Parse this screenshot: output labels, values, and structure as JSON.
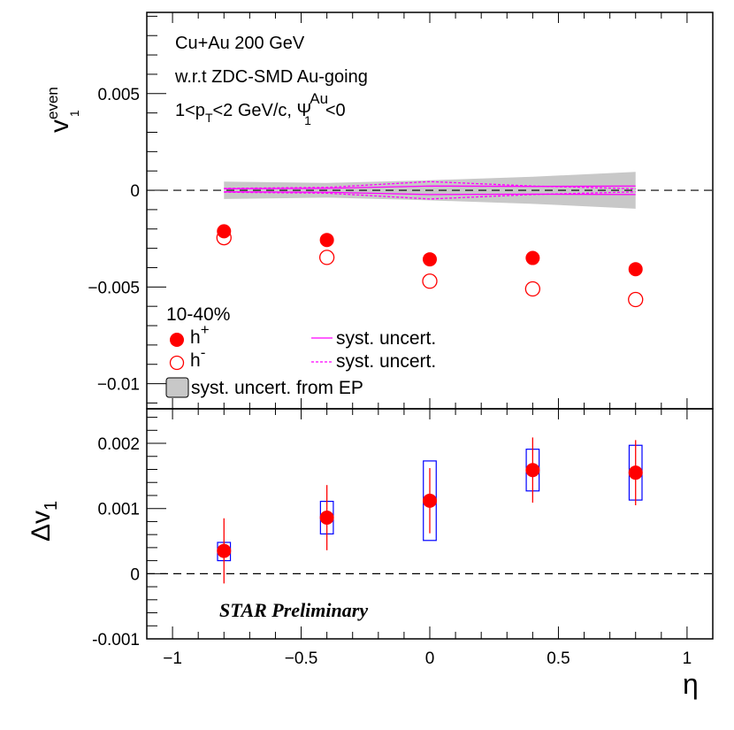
{
  "chart_data": [
    {
      "type": "scatter",
      "panel": "top",
      "ylabel": "v1even",
      "ylim": [
        -0.0113,
        0.0092
      ],
      "xlim": [
        -1.1,
        1.1
      ],
      "yticks": [
        {
          "value": 0.005,
          "label": "0.005"
        },
        {
          "value": 0,
          "label": "0"
        },
        {
          "value": -0.005,
          "label": "−0.005"
        },
        {
          "value": -0.01,
          "label": "−0.01"
        }
      ],
      "annotations": {
        "line1": "Cu+Au 200 GeV",
        "line2": "w.r.t ZDC-SMD Au-going",
        "line3": {
          "a": "1<p",
          "a_sub": "T",
          "b": "<2 GeV/c,  Ψ",
          "b_sup": "Au",
          "b_sub": "1",
          "c": "<0"
        }
      },
      "legend": {
        "centrality": "10-40%",
        "hplus": {
          "base": "h",
          "sup": "+"
        },
        "hminus": {
          "base": "h",
          "sup": "-"
        },
        "syst_solid": "syst. uncert.",
        "syst_dashed": "syst. uncert.",
        "syst_ep": "syst. uncert. from EP"
      },
      "series": [
        {
          "name": "h+",
          "marker": "filled-circle",
          "color": "#ff0000",
          "x": [
            -0.8,
            -0.4,
            0.0,
            0.4,
            0.8
          ],
          "y": [
            -0.00212,
            -0.00257,
            -0.00357,
            -0.0035,
            -0.00408
          ]
        },
        {
          "name": "h-",
          "marker": "open-circle",
          "color": "#ff0000",
          "x": [
            -0.8,
            -0.4,
            0.0,
            0.4,
            0.8
          ],
          "y": [
            -0.00245,
            -0.00347,
            -0.0047,
            -0.0051,
            -0.00565
          ]
        }
      ],
      "syst_ep_band": {
        "x": [
          -0.8,
          -0.4,
          0.0,
          0.4,
          0.8
        ],
        "half_width": [
          0.00045,
          0.00038,
          0.00052,
          0.0007,
          0.00095
        ],
        "color": "#c8c8c8"
      },
      "syst_solid_band": {
        "x": [
          -0.8,
          -0.4,
          0.0,
          0.4,
          0.8
        ],
        "half_width": [
          8e-05,
          0.0001,
          0.00022,
          0.0002,
          0.00022
        ],
        "color": "#ff00ff"
      },
      "syst_dashed_band": {
        "x": [
          -0.8,
          -0.4,
          0.0,
          0.4,
          0.8
        ],
        "half_width": [
          0.0001,
          0.00015,
          0.00045,
          0.00022,
          8e-05
        ],
        "color": "#ff00ff"
      }
    },
    {
      "type": "scatter",
      "panel": "bottom",
      "ylabel": "Δv1",
      "xlabel": "η",
      "xlim": [
        -1.1,
        1.1
      ],
      "ylim": [
        -0.001,
        0.00253
      ],
      "xticks": [
        {
          "value": -1,
          "label": "−1"
        },
        {
          "value": -0.5,
          "label": "−0.5"
        },
        {
          "value": 0,
          "label": "0"
        },
        {
          "value": 0.5,
          "label": "0.5"
        },
        {
          "value": 1,
          "label": "1"
        }
      ],
      "yticks": [
        {
          "value": 0.002,
          "label": "0.002"
        },
        {
          "value": 0.001,
          "label": "0.001"
        },
        {
          "value": 0,
          "label": "0"
        },
        {
          "value": -0.001,
          "label": "-0.001"
        }
      ],
      "watermark": "STAR Preliminary",
      "series": [
        {
          "name": "delta_v1",
          "marker": "filled-circle",
          "color": "#ff0000",
          "x": [
            -0.8,
            -0.4,
            0.0,
            0.4,
            0.8
          ],
          "y": [
            0.00035,
            0.00086,
            0.00112,
            0.00159,
            0.00155
          ],
          "stat_err": [
            0.0005,
            0.0005,
            0.0005,
            0.0005,
            0.0005
          ],
          "sys_low": [
            0.0002,
            0.00061,
            0.00051,
            0.00127,
            0.00113
          ],
          "sys_high": [
            0.00048,
            0.00111,
            0.00173,
            0.00191,
            0.00197
          ]
        }
      ],
      "sys_box_color": "#0000ff",
      "sys_box_half_width_x": 0.025
    }
  ]
}
